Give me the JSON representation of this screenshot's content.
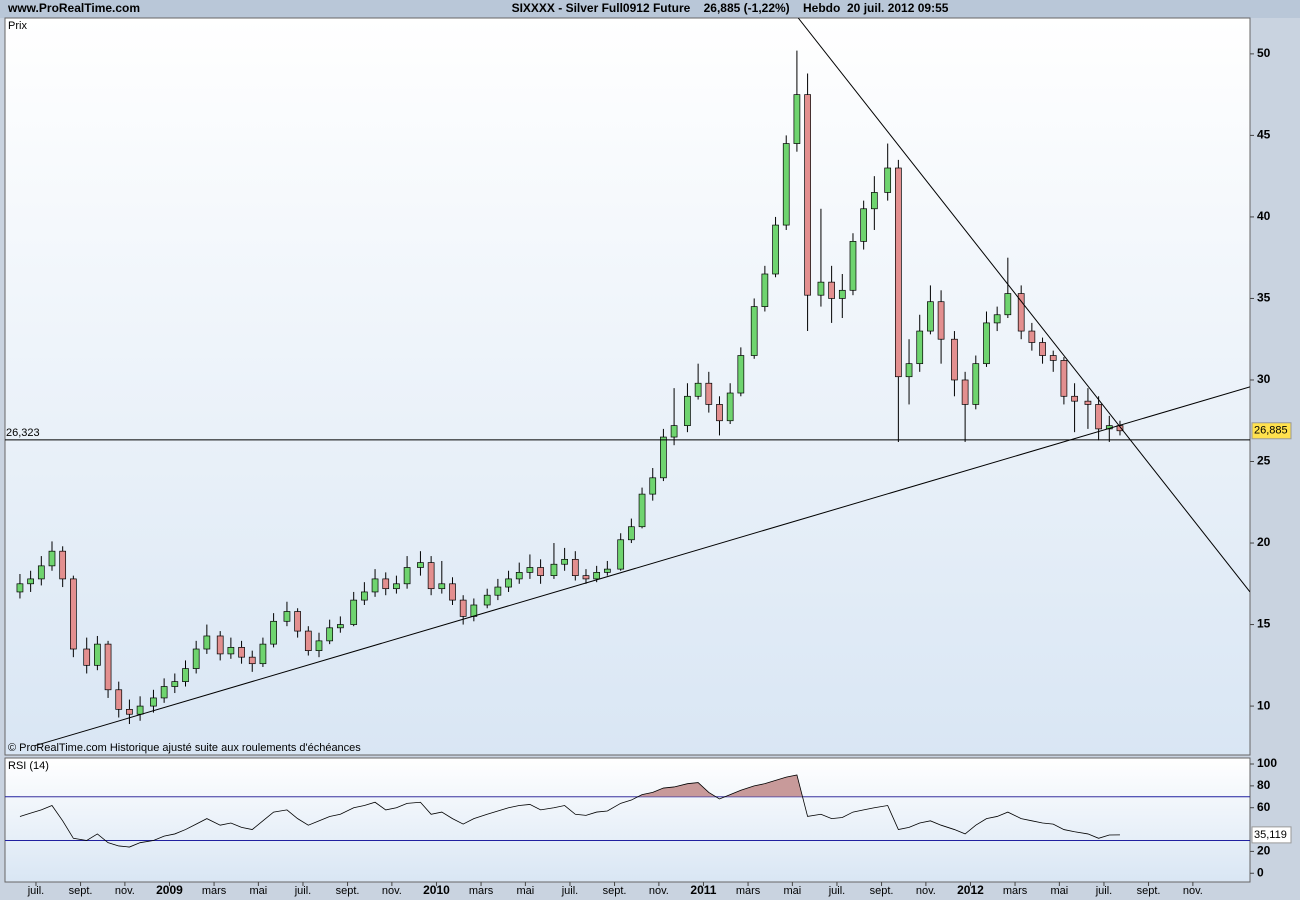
{
  "header": {
    "site": "www.ProRealTime.com",
    "title": "SIXXXX - Silver Full0912 Future    26,885 (-1,22%)    Hebdo  20 juil. 2012 09:55"
  },
  "chart_data": [
    {
      "type": "candlestick",
      "label": "Prix",
      "note": "© ProRealTime.com  Historique ajusté suite aux roulements d'échéances",
      "up_color": "#6fd46f",
      "down_color": "#e38f8f",
      "x": [
        2008.44,
        2008.48,
        2008.52,
        2008.56,
        2008.6,
        2008.64,
        2008.69,
        2008.73,
        2008.77,
        2008.81,
        2008.85,
        2008.89,
        2008.94,
        2008.98,
        2009.02,
        2009.06,
        2009.1,
        2009.14,
        2009.19,
        2009.23,
        2009.27,
        2009.31,
        2009.35,
        2009.39,
        2009.44,
        2009.48,
        2009.52,
        2009.56,
        2009.6,
        2009.64,
        2009.69,
        2009.73,
        2009.77,
        2009.81,
        2009.85,
        2009.89,
        2009.94,
        2009.98,
        2010.02,
        2010.06,
        2010.1,
        2010.14,
        2010.19,
        2010.23,
        2010.27,
        2010.31,
        2010.35,
        2010.39,
        2010.44,
        2010.48,
        2010.52,
        2010.56,
        2010.6,
        2010.64,
        2010.69,
        2010.73,
        2010.77,
        2010.81,
        2010.85,
        2010.89,
        2010.94,
        2010.98,
        2011.02,
        2011.06,
        2011.1,
        2011.14,
        2011.19,
        2011.23,
        2011.27,
        2011.31,
        2011.35,
        2011.39,
        2011.44,
        2011.48,
        2011.52,
        2011.56,
        2011.6,
        2011.64,
        2011.69,
        2011.73,
        2011.77,
        2011.81,
        2011.85,
        2011.89,
        2011.94,
        2011.98,
        2012.02,
        2012.06,
        2012.1,
        2012.14,
        2012.19,
        2012.23,
        2012.27,
        2012.31,
        2012.35,
        2012.39,
        2012.44,
        2012.48,
        2012.52,
        2012.56
      ],
      "open": [
        17.0,
        17.5,
        17.8,
        18.6,
        19.5,
        17.8,
        13.5,
        12.5,
        13.8,
        11.0,
        9.8,
        9.5,
        10.0,
        10.5,
        11.2,
        11.5,
        12.3,
        13.5,
        14.3,
        13.2,
        13.6,
        13.0,
        12.6,
        13.8,
        15.2,
        15.8,
        14.6,
        13.4,
        14.0,
        14.8,
        15.0,
        16.5,
        17.0,
        17.8,
        17.2,
        17.5,
        18.5,
        18.8,
        17.2,
        17.5,
        16.5,
        15.5,
        16.2,
        16.8,
        17.3,
        17.8,
        18.2,
        18.5,
        18.0,
        18.7,
        19.0,
        18.0,
        17.8,
        18.2,
        18.4,
        20.2,
        21.0,
        23.0,
        24.0,
        26.5,
        27.2,
        29.0,
        29.8,
        28.5,
        27.5,
        29.2,
        31.5,
        34.5,
        36.5,
        39.5,
        44.5,
        47.5,
        35.2,
        36.0,
        35.0,
        35.5,
        38.5,
        40.5,
        41.5,
        43.0,
        30.2,
        31.0,
        33.0,
        34.8,
        32.5,
        30.0,
        28.5,
        31.0,
        33.5,
        34.0,
        35.3,
        33.0,
        32.3,
        31.5,
        31.2,
        29.0,
        28.7,
        28.5,
        27.0,
        27.2
      ],
      "high": [
        18.1,
        18.3,
        19.2,
        20.1,
        19.8,
        18.0,
        14.2,
        14.3,
        14.0,
        11.5,
        10.4,
        10.6,
        11.0,
        11.7,
        12.0,
        12.8,
        14.0,
        15.0,
        14.6,
        14.2,
        14.0,
        13.4,
        14.2,
        15.7,
        16.4,
        16.0,
        14.9,
        14.5,
        15.3,
        15.5,
        17.0,
        17.6,
        18.4,
        18.2,
        18.0,
        19.2,
        19.5,
        19.2,
        18.9,
        17.9,
        16.8,
        16.6,
        17.2,
        17.8,
        18.3,
        18.8,
        19.3,
        19.0,
        20.0,
        19.7,
        19.5,
        18.4,
        18.6,
        18.9,
        20.6,
        21.5,
        23.4,
        24.6,
        27.0,
        29.5,
        29.8,
        31.0,
        30.5,
        29.0,
        29.8,
        32.0,
        35.0,
        37.0,
        40.0,
        45.0,
        50.2,
        48.8,
        40.5,
        37.0,
        36.5,
        39.0,
        41.0,
        42.5,
        44.5,
        43.5,
        32.5,
        34.0,
        35.8,
        35.5,
        33.0,
        30.5,
        31.5,
        34.2,
        34.5,
        37.5,
        35.8,
        33.5,
        32.6,
        31.8,
        31.4,
        29.8,
        29.5,
        29.0,
        27.8,
        27.5
      ],
      "low": [
        16.6,
        17.0,
        17.4,
        18.3,
        17.3,
        13.0,
        12.0,
        12.2,
        10.5,
        9.3,
        8.9,
        9.1,
        9.6,
        10.2,
        10.8,
        11.2,
        12.0,
        13.2,
        12.8,
        12.9,
        12.6,
        12.1,
        12.4,
        13.6,
        14.9,
        14.2,
        13.1,
        13.0,
        13.8,
        14.5,
        14.9,
        16.2,
        16.7,
        16.8,
        16.9,
        17.2,
        18.0,
        16.8,
        16.9,
        16.2,
        15.0,
        15.2,
        16.0,
        16.5,
        17.0,
        17.5,
        17.8,
        17.5,
        17.8,
        18.3,
        17.7,
        17.5,
        17.6,
        18.0,
        18.3,
        20.0,
        20.9,
        22.6,
        23.8,
        26.0,
        26.8,
        28.8,
        28.0,
        26.6,
        27.3,
        29.0,
        31.3,
        34.2,
        36.3,
        39.2,
        44.0,
        33.0,
        34.5,
        33.5,
        33.8,
        35.2,
        38.0,
        39.2,
        41.0,
        26.2,
        28.5,
        30.5,
        32.8,
        31.0,
        29.0,
        26.2,
        28.2,
        30.8,
        33.0,
        33.8,
        32.5,
        31.8,
        31.0,
        30.5,
        28.5,
        26.8,
        27.0,
        26.3,
        26.2,
        26.6
      ],
      "close": [
        17.5,
        17.8,
        18.6,
        19.5,
        17.8,
        13.5,
        12.5,
        13.8,
        11.0,
        9.8,
        9.5,
        10.0,
        10.5,
        11.2,
        11.5,
        12.3,
        13.5,
        14.3,
        13.2,
        13.6,
        13.0,
        12.6,
        13.8,
        15.2,
        15.8,
        14.6,
        13.4,
        14.0,
        14.8,
        15.0,
        16.5,
        17.0,
        17.8,
        17.2,
        17.5,
        18.5,
        18.8,
        17.2,
        17.5,
        16.5,
        15.5,
        16.2,
        16.8,
        17.3,
        17.8,
        18.2,
        18.5,
        18.0,
        18.7,
        19.0,
        18.0,
        17.8,
        18.2,
        18.4,
        20.2,
        21.0,
        23.0,
        24.0,
        26.5,
        27.2,
        29.0,
        29.8,
        28.5,
        27.5,
        29.2,
        31.5,
        34.5,
        36.5,
        39.5,
        44.5,
        47.5,
        35.2,
        36.0,
        35.0,
        35.5,
        38.5,
        40.5,
        41.5,
        43.0,
        30.2,
        31.0,
        33.0,
        34.8,
        32.5,
        30.0,
        28.5,
        31.0,
        33.5,
        34.0,
        35.3,
        33.0,
        32.3,
        31.5,
        31.2,
        29.0,
        28.7,
        28.5,
        27.0,
        27.2,
        26.885
      ],
      "xlim": [
        2008.384,
        2013.047
      ],
      "xticks": [
        {
          "value": 2008.5,
          "label": "juil."
        },
        {
          "value": 2008.667,
          "label": "sept."
        },
        {
          "value": 2008.833,
          "label": "nov."
        },
        2009,
        {
          "value": 2009.167,
          "label": "mars"
        },
        {
          "value": 2009.333,
          "label": "mai"
        },
        {
          "value": 2009.5,
          "label": "juil."
        },
        {
          "value": 2009.667,
          "label": "sept."
        },
        {
          "value": 2009.833,
          "label": "nov."
        },
        2010,
        {
          "value": 2010.167,
          "label": "mars"
        },
        {
          "value": 2010.333,
          "label": "mai"
        },
        {
          "value": 2010.5,
          "label": "juil."
        },
        {
          "value": 2010.667,
          "label": "sept."
        },
        {
          "value": 2010.833,
          "label": "nov."
        },
        2011,
        {
          "value": 2011.167,
          "label": "mars"
        },
        {
          "value": 2011.333,
          "label": "mai"
        },
        {
          "value": 2011.5,
          "label": "juil."
        },
        {
          "value": 2011.667,
          "label": "sept."
        },
        {
          "value": 2011.833,
          "label": "nov."
        },
        2012,
        {
          "value": 2012.167,
          "label": "mars"
        },
        {
          "value": 2012.333,
          "label": "mai"
        },
        {
          "value": 2012.5,
          "label": "juil."
        },
        {
          "value": 2012.667,
          "label": "sept."
        },
        {
          "value": 2012.833,
          "label": "nov."
        }
      ],
      "ylim": [
        7.0,
        52.2
      ],
      "yticks": [
        10,
        15,
        20,
        25,
        30,
        35,
        40,
        45,
        50
      ],
      "hline": {
        "value": 26.323,
        "label": "26,323"
      },
      "last": {
        "value": 26.885,
        "label": "26,885"
      },
      "trendlines": [
        {
          "x": [
            2008.496,
            2013.047
          ],
          "y": [
            7.57,
            29.58
          ]
        },
        {
          "x": [
            2011.355,
            2013.047
          ],
          "y": [
            52.2,
            17.0
          ]
        }
      ]
    },
    {
      "type": "line",
      "label": "RSI (14)",
      "color": "#000000",
      "overbought_color": "#c89a9a",
      "level_color": "#2020a0",
      "values": [
        52,
        55,
        58,
        62,
        48,
        32,
        30,
        36,
        28,
        25,
        24,
        28,
        30,
        34,
        36,
        40,
        45,
        50,
        44,
        46,
        42,
        40,
        48,
        56,
        58,
        50,
        44,
        48,
        52,
        54,
        60,
        62,
        65,
        58,
        60,
        64,
        65,
        54,
        56,
        50,
        45,
        50,
        54,
        57,
        60,
        62,
        63,
        58,
        60,
        62,
        54,
        53,
        56,
        57,
        64,
        67,
        72,
        74,
        78,
        79,
        82,
        83,
        74,
        68,
        72,
        76,
        80,
        82,
        85,
        88,
        90,
        52,
        54,
        50,
        51,
        56,
        58,
        60,
        62,
        40,
        42,
        46,
        48,
        44,
        40,
        36,
        44,
        50,
        52,
        56,
        50,
        48,
        46,
        45,
        40,
        38,
        36,
        32,
        35,
        35.119
      ],
      "ylim": [
        -8,
        105.5
      ],
      "yticks": [
        0,
        20,
        60,
        80,
        100
      ],
      "levels": [
        30,
        70
      ],
      "last": {
        "value": 35.119,
        "label": "35,119"
      }
    }
  ]
}
